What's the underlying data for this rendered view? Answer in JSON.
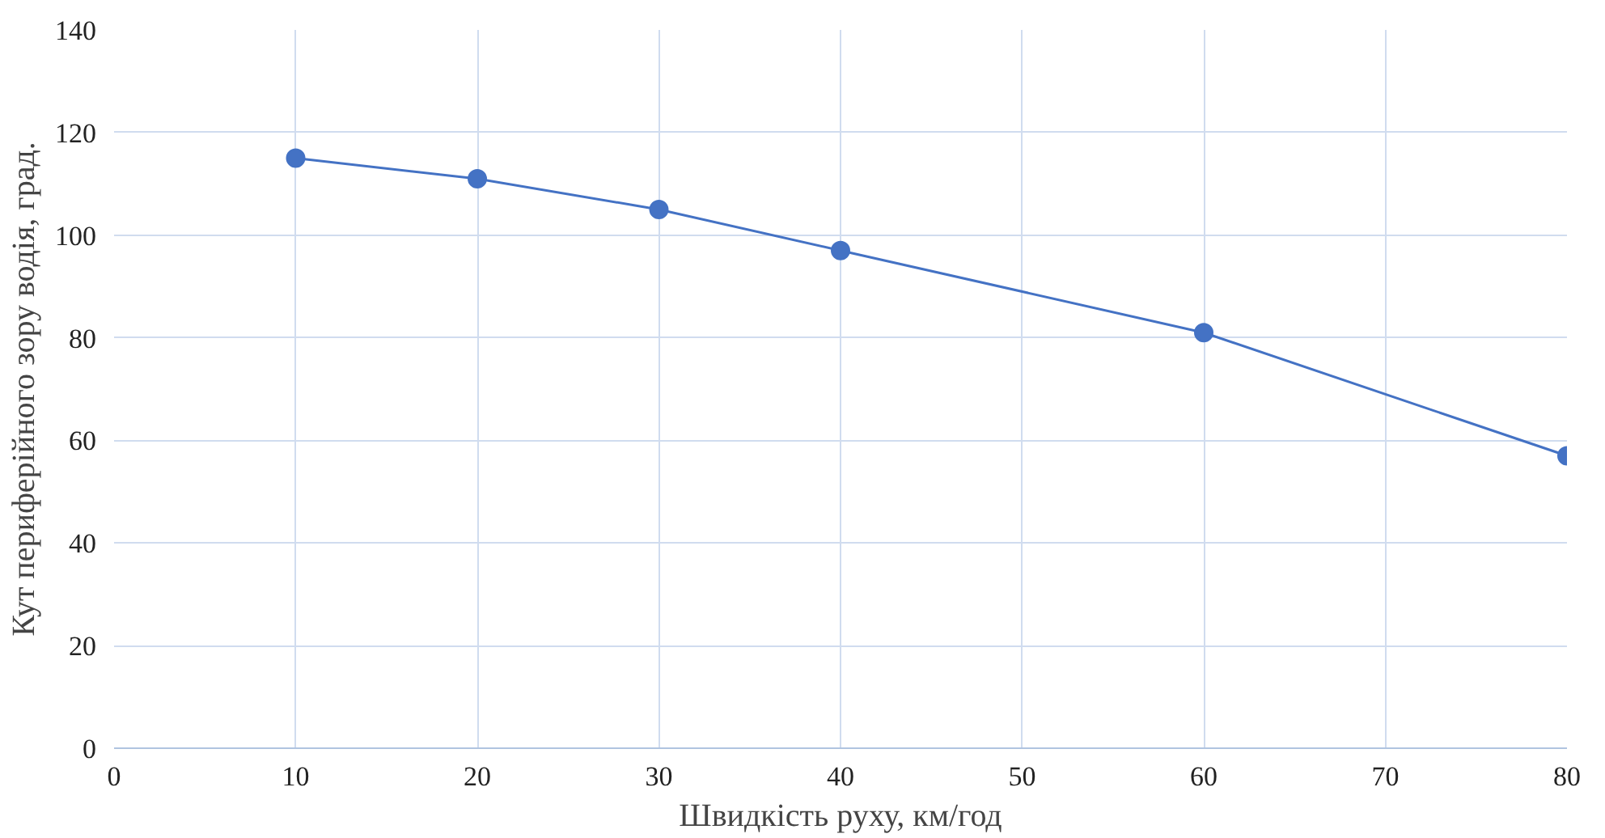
{
  "chart_data": {
    "type": "line",
    "xlabel": "Швидкість руху, км/год",
    "ylabel": "Кут периферійного зору водія, град.",
    "x": [
      10,
      20,
      30,
      40,
      60,
      80
    ],
    "series": [
      {
        "color": "#4472c4",
        "values": [
          115,
          111,
          105,
          97,
          81,
          57
        ]
      }
    ],
    "xlim": [
      0,
      80
    ],
    "xticks": [
      0,
      10,
      20,
      30,
      40,
      50,
      60,
      70,
      80
    ],
    "ylim": [
      0,
      140
    ],
    "yticks": [
      0,
      20,
      40,
      60,
      80,
      100,
      120,
      140
    ],
    "grid": true,
    "marker": "circle",
    "line_style": "solid"
  }
}
